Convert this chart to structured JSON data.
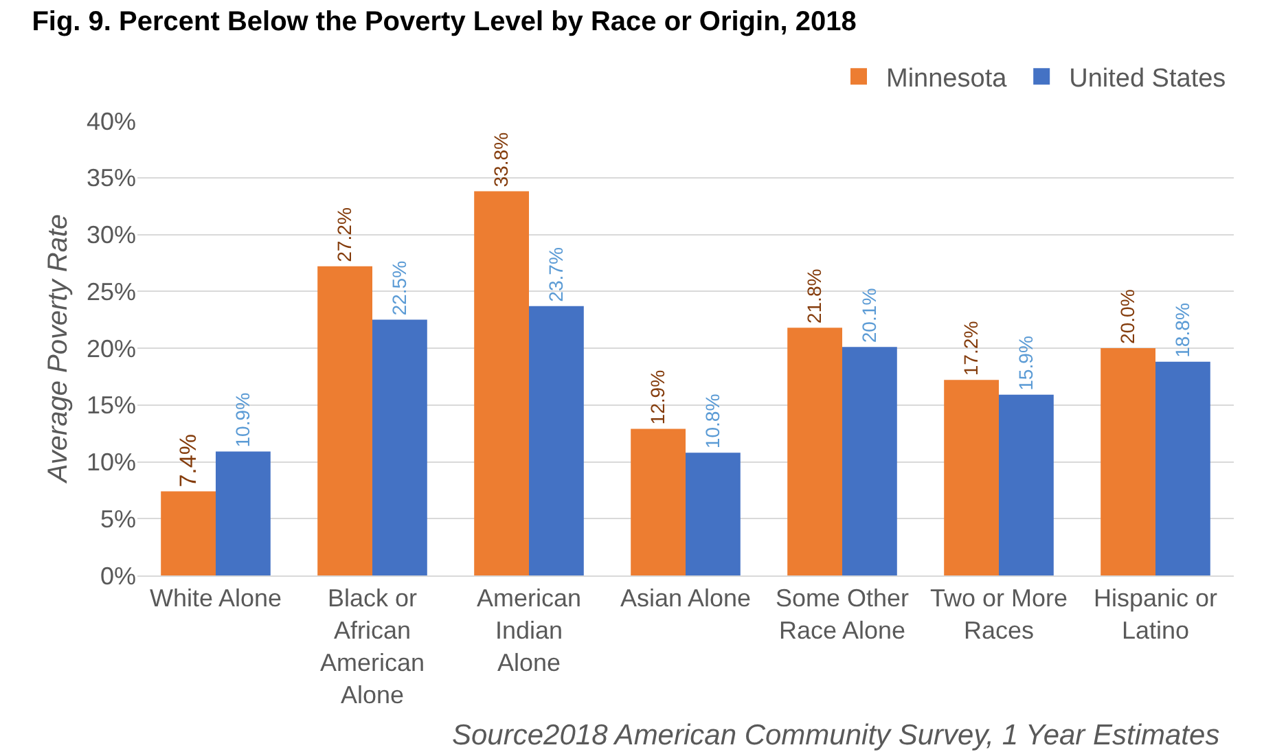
{
  "chart_data": {
    "type": "bar",
    "title": "Fig. 9. Percent Below the Poverty Level by Race or Origin, 2018",
    "ylabel": "Average Poverty Rate",
    "categories": [
      "White Alone",
      "Black or African American Alone",
      "American Indian Alone",
      "Asian Alone",
      "Some Other Race Alone",
      "Two or More Races",
      "Hispanic or Latino"
    ],
    "series": [
      {
        "name": "Minnesota",
        "color": "#ed7d31",
        "values": [
          7.4,
          27.2,
          33.8,
          12.9,
          21.8,
          17.2,
          20.0
        ],
        "value_labels": [
          "7.4%",
          "27.2%",
          "33.8%",
          "12.9%",
          "21.8%",
          "17.2%",
          "20.0%"
        ]
      },
      {
        "name": "United States",
        "color": "#4472c4",
        "values": [
          10.9,
          22.5,
          23.7,
          10.8,
          20.1,
          15.9,
          18.8
        ],
        "value_labels": [
          "10.9%",
          "22.5%",
          "23.7%",
          "10.8%",
          "20.1%",
          "15.9%",
          "18.8%"
        ]
      }
    ],
    "ylim": [
      0,
      40
    ],
    "yticks": [
      {
        "value": 0,
        "label": "0%"
      },
      {
        "value": 5,
        "label": "5%"
      },
      {
        "value": 10,
        "label": "10%"
      },
      {
        "value": 15,
        "label": "15%"
      },
      {
        "value": 20,
        "label": "20%"
      },
      {
        "value": 25,
        "label": "25%"
      },
      {
        "value": 30,
        "label": "30%"
      },
      {
        "value": 35,
        "label": "35%"
      },
      {
        "value": 40,
        "label": "40%"
      }
    ],
    "grid": "y",
    "legend": "top right",
    "annotations": [
      "Source2018 American Community Survey, 1 Year Estimates"
    ]
  }
}
